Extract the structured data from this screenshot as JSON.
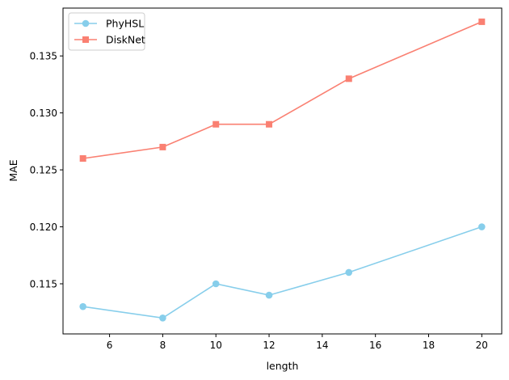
{
  "chart_data": {
    "type": "line",
    "title": "",
    "xlabel": "length",
    "ylabel": "MAE",
    "x": [
      5,
      8,
      10,
      12,
      15,
      20
    ],
    "xlim": [
      4.25,
      20.75
    ],
    "ylim": [
      0.1106,
      0.1392
    ],
    "xticks": [
      6,
      8,
      10,
      12,
      14,
      16,
      18,
      20
    ],
    "xtick_labels": [
      "6",
      "8",
      "10",
      "12",
      "14",
      "16",
      "18",
      "20"
    ],
    "yticks": [
      0.115,
      0.12,
      0.125,
      0.13,
      0.135
    ],
    "ytick_labels": [
      "0.115",
      "0.120",
      "0.125",
      "0.130",
      "0.135"
    ],
    "grid": false,
    "legend_position": "top-left",
    "series": [
      {
        "name": "PhyHSL",
        "values": [
          0.113,
          0.112,
          0.115,
          0.114,
          0.116,
          0.12
        ],
        "color": "#87CEEB",
        "marker": "circle"
      },
      {
        "name": "DiskNet",
        "values": [
          0.126,
          0.127,
          0.129,
          0.129,
          0.133,
          0.138
        ],
        "color": "#FA8072",
        "marker": "square"
      }
    ]
  }
}
